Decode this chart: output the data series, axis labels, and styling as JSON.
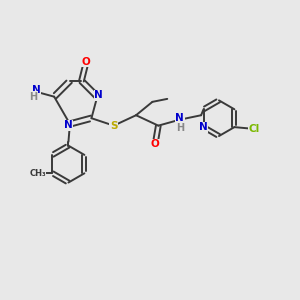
{
  "bg_color": "#e8e8e8",
  "bond_color": "#3a3a3a",
  "atom_colors": {
    "N": "#0000cc",
    "O": "#ff0000",
    "S": "#bbaa00",
    "Cl": "#7ab800",
    "H": "#888888",
    "C": "#3a3a3a"
  },
  "font_size": 7.0,
  "line_width": 1.4
}
